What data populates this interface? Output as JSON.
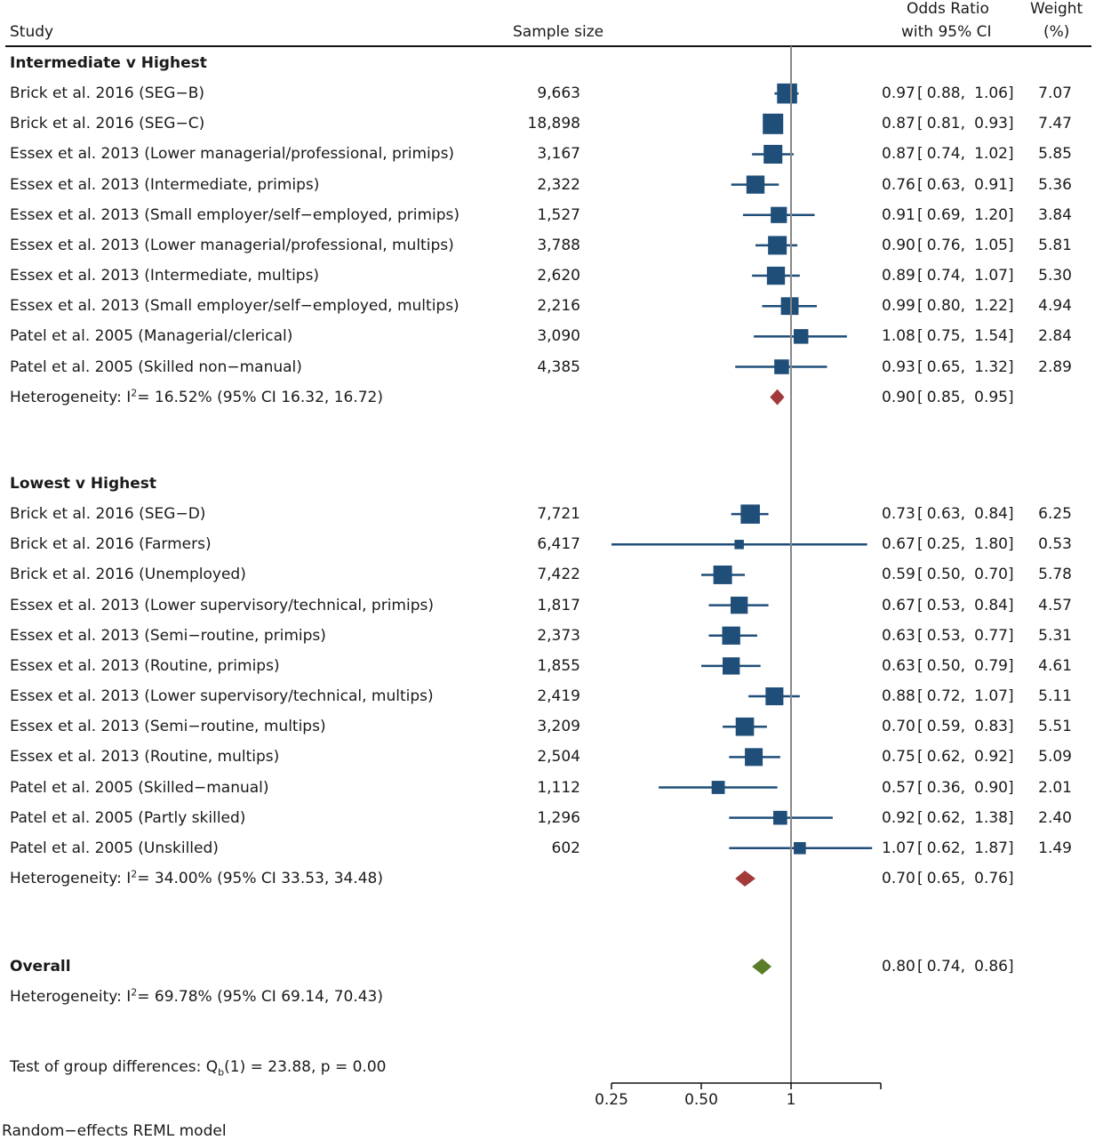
{
  "header": {
    "study": "Study",
    "sample_size": "Sample size",
    "or_line1": "Odds Ratio",
    "or_line2": "with 95% CI",
    "weight_line1": "Weight",
    "weight_line2": "(%)"
  },
  "colors": {
    "study_marker": "#1f4e79",
    "group_diamond": "#a33a3a",
    "overall_diamond": "#5a7d2a",
    "reference_line": "#888888"
  },
  "chart_data": {
    "type": "forest",
    "x_scale": "log",
    "xlim": [
      0.25,
      2.0
    ],
    "ticks": [
      {
        "value": 0.25,
        "label": "0.25"
      },
      {
        "value": 0.5,
        "label": "0.50"
      },
      {
        "value": 1,
        "label": "1"
      },
      {
        "value": 2,
        "label": ""
      }
    ],
    "reference_value": 1,
    "groups": [
      {
        "label": "Intermediate v Highest",
        "studies": [
          {
            "study": "Brick et al. 2016 (SEG−B)",
            "n": "9,663",
            "or": 0.97,
            "lo": 0.88,
            "hi": 1.06,
            "or_text": "0.97",
            "lo_text": "0.88",
            "hi_text": "1.06",
            "weight": 7.07,
            "weight_text": "7.07"
          },
          {
            "study": "Brick et al. 2016 (SEG−C)",
            "n": "18,898",
            "or": 0.87,
            "lo": 0.81,
            "hi": 0.93,
            "or_text": "0.87",
            "lo_text": "0.81",
            "hi_text": "0.93",
            "weight": 7.47,
            "weight_text": "7.47"
          },
          {
            "study": "Essex et al. 2013 (Lower managerial/professional, primips)",
            "n": "3,167",
            "or": 0.87,
            "lo": 0.74,
            "hi": 1.02,
            "or_text": "0.87",
            "lo_text": "0.74",
            "hi_text": "1.02",
            "weight": 5.85,
            "weight_text": "5.85"
          },
          {
            "study": "Essex et al. 2013 (Intermediate, primips)",
            "n": "2,322",
            "or": 0.76,
            "lo": 0.63,
            "hi": 0.91,
            "or_text": "0.76",
            "lo_text": "0.63",
            "hi_text": "0.91",
            "weight": 5.36,
            "weight_text": "5.36"
          },
          {
            "study": "Essex et al. 2013 (Small employer/self−employed, primips)",
            "n": "1,527",
            "or": 0.91,
            "lo": 0.69,
            "hi": 1.2,
            "or_text": "0.91",
            "lo_text": "0.69",
            "hi_text": "1.20",
            "weight": 3.84,
            "weight_text": "3.84"
          },
          {
            "study": "Essex et al. 2013 (Lower managerial/professional, multips)",
            "n": "3,788",
            "or": 0.9,
            "lo": 0.76,
            "hi": 1.05,
            "or_text": "0.90",
            "lo_text": "0.76",
            "hi_text": "1.05",
            "weight": 5.81,
            "weight_text": "5.81"
          },
          {
            "study": "Essex et al. 2013 (Intermediate, multips)",
            "n": "2,620",
            "or": 0.89,
            "lo": 0.74,
            "hi": 1.07,
            "or_text": "0.89",
            "lo_text": "0.74",
            "hi_text": "1.07",
            "weight": 5.3,
            "weight_text": "5.30"
          },
          {
            "study": "Essex et al. 2013 (Small employer/self−employed, multips)",
            "n": "2,216",
            "or": 0.99,
            "lo": 0.8,
            "hi": 1.22,
            "or_text": "0.99",
            "lo_text": "0.80",
            "hi_text": "1.22",
            "weight": 4.94,
            "weight_text": "4.94"
          },
          {
            "study": "Patel et al. 2005 (Managerial/clerical)",
            "n": "3,090",
            "or": 1.08,
            "lo": 0.75,
            "hi": 1.54,
            "or_text": "1.08",
            "lo_text": "0.75",
            "hi_text": "1.54",
            "weight": 2.84,
            "weight_text": "2.84"
          },
          {
            "study": "Patel et al. 2005 (Skilled non−manual)",
            "n": "4,385",
            "or": 0.93,
            "lo": 0.65,
            "hi": 1.32,
            "or_text": "0.93",
            "lo_text": "0.65",
            "hi_text": "1.32",
            "weight": 2.89,
            "weight_text": "2.89"
          }
        ],
        "pooled": {
          "or": 0.9,
          "lo": 0.85,
          "hi": 0.95,
          "or_text": "0.90",
          "lo_text": "0.85",
          "hi_text": "0.95"
        },
        "heterogeneity_prefix": "Heterogeneity: I",
        "heterogeneity_sup": "2",
        "heterogeneity_rest": "= 16.52% (95% CI 16.32, 16.72)"
      },
      {
        "label": "Lowest v Highest",
        "studies": [
          {
            "study": "Brick et al. 2016 (SEG−D)",
            "n": "7,721",
            "or": 0.73,
            "lo": 0.63,
            "hi": 0.84,
            "or_text": "0.73",
            "lo_text": "0.63",
            "hi_text": "0.84",
            "weight": 6.25,
            "weight_text": "6.25"
          },
          {
            "study": "Brick et al. 2016 (Farmers)",
            "n": "6,417",
            "or": 0.67,
            "lo": 0.25,
            "hi": 1.8,
            "or_text": "0.67",
            "lo_text": "0.25",
            "hi_text": "1.80",
            "weight": 0.53,
            "weight_text": "0.53"
          },
          {
            "study": "Brick et al. 2016 (Unemployed)",
            "n": "7,422",
            "or": 0.59,
            "lo": 0.5,
            "hi": 0.7,
            "or_text": "0.59",
            "lo_text": "0.50",
            "hi_text": "0.70",
            "weight": 5.78,
            "weight_text": "5.78"
          },
          {
            "study": "Essex et al. 2013 (Lower supervisory/technical, primips)",
            "n": "1,817",
            "or": 0.67,
            "lo": 0.53,
            "hi": 0.84,
            "or_text": "0.67",
            "lo_text": "0.53",
            "hi_text": "0.84",
            "weight": 4.57,
            "weight_text": "4.57"
          },
          {
            "study": "Essex et al. 2013 (Semi−routine, primips)",
            "n": "2,373",
            "or": 0.63,
            "lo": 0.53,
            "hi": 0.77,
            "or_text": "0.63",
            "lo_text": "0.53",
            "hi_text": "0.77",
            "weight": 5.31,
            "weight_text": "5.31"
          },
          {
            "study": "Essex et al. 2013 (Routine, primips)",
            "n": "1,855",
            "or": 0.63,
            "lo": 0.5,
            "hi": 0.79,
            "or_text": "0.63",
            "lo_text": "0.50",
            "hi_text": "0.79",
            "weight": 4.61,
            "weight_text": "4.61"
          },
          {
            "study": "Essex et al. 2013 (Lower supervisory/technical, multips)",
            "n": "2,419",
            "or": 0.88,
            "lo": 0.72,
            "hi": 1.07,
            "or_text": "0.88",
            "lo_text": "0.72",
            "hi_text": "1.07",
            "weight": 5.11,
            "weight_text": "5.11"
          },
          {
            "study": "Essex et al. 2013 (Semi−routine, multips)",
            "n": "3,209",
            "or": 0.7,
            "lo": 0.59,
            "hi": 0.83,
            "or_text": "0.70",
            "lo_text": "0.59",
            "hi_text": "0.83",
            "weight": 5.51,
            "weight_text": "5.51"
          },
          {
            "study": "Essex et al. 2013 (Routine, multips)",
            "n": "2,504",
            "or": 0.75,
            "lo": 0.62,
            "hi": 0.92,
            "or_text": "0.75",
            "lo_text": "0.62",
            "hi_text": "0.92",
            "weight": 5.09,
            "weight_text": "5.09"
          },
          {
            "study": "Patel et al. 2005 (Skilled−manual)",
            "n": "1,112",
            "or": 0.57,
            "lo": 0.36,
            "hi": 0.9,
            "or_text": "0.57",
            "lo_text": "0.36",
            "hi_text": "0.90",
            "weight": 2.01,
            "weight_text": "2.01"
          },
          {
            "study": "Patel et al. 2005 (Partly skilled)",
            "n": "1,296",
            "or": 0.92,
            "lo": 0.62,
            "hi": 1.38,
            "or_text": "0.92",
            "lo_text": "0.62",
            "hi_text": "1.38",
            "weight": 2.4,
            "weight_text": "2.40"
          },
          {
            "study": "Patel et al. 2005 (Unskilled)",
            "n": "602",
            "or": 1.07,
            "lo": 0.62,
            "hi": 1.87,
            "or_text": "1.07",
            "lo_text": "0.62",
            "hi_text": "1.87",
            "weight": 1.49,
            "weight_text": "1.49"
          }
        ],
        "pooled": {
          "or": 0.7,
          "lo": 0.65,
          "hi": 0.76,
          "or_text": "0.70",
          "lo_text": "0.65",
          "hi_text": "0.76"
        },
        "heterogeneity_prefix": "Heterogeneity: I",
        "heterogeneity_sup": "2",
        "heterogeneity_rest": "= 34.00% (95% CI 33.53, 34.48)"
      }
    ],
    "overall": {
      "label": "Overall",
      "or": 0.8,
      "lo": 0.74,
      "hi": 0.86,
      "or_text": "0.80",
      "lo_text": "0.74",
      "hi_text": "0.86",
      "heterogeneity_prefix": "Heterogeneity: I",
      "heterogeneity_sup": "2",
      "heterogeneity_rest": "= 69.78% (95% CI 69.14, 70.43)"
    },
    "group_test": {
      "prefix": "Test of group differences: Q",
      "sub": "b",
      "rest": "(1) = 23.88, p = 0.00"
    },
    "footnote": "Random−effects REML model"
  }
}
